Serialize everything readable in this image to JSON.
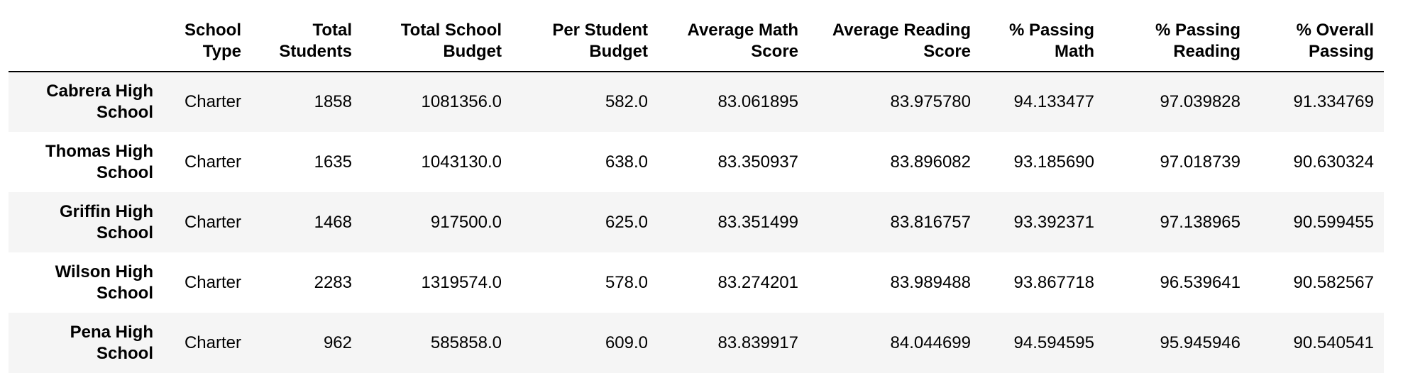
{
  "table": {
    "index_header": "",
    "columns": [
      {
        "line1": "School",
        "line2": "Type"
      },
      {
        "line1": "Total",
        "line2": "Students"
      },
      {
        "line1": "Total School",
        "line2": "Budget"
      },
      {
        "line1": "Per Student",
        "line2": "Budget"
      },
      {
        "line1": "Average Math",
        "line2": "Score"
      },
      {
        "line1": "Average Reading",
        "line2": "Score"
      },
      {
        "line1": "% Passing",
        "line2": "Math"
      },
      {
        "line1": "% Passing",
        "line2": "Reading"
      },
      {
        "line1": "% Overall",
        "line2": "Passing"
      }
    ],
    "rows": [
      {
        "school_line1": "Cabrera High",
        "school_line2": "School",
        "cells": [
          "Charter",
          "1858",
          "1081356.0",
          "582.0",
          "83.061895",
          "83.975780",
          "94.133477",
          "97.039828",
          "91.334769"
        ]
      },
      {
        "school_line1": "Thomas High",
        "school_line2": "School",
        "cells": [
          "Charter",
          "1635",
          "1043130.0",
          "638.0",
          "83.350937",
          "83.896082",
          "93.185690",
          "97.018739",
          "90.630324"
        ]
      },
      {
        "school_line1": "Griffin High",
        "school_line2": "School",
        "cells": [
          "Charter",
          "1468",
          "917500.0",
          "625.0",
          "83.351499",
          "83.816757",
          "93.392371",
          "97.138965",
          "90.599455"
        ]
      },
      {
        "school_line1": "Wilson High",
        "school_line2": "School",
        "cells": [
          "Charter",
          "2283",
          "1319574.0",
          "578.0",
          "83.274201",
          "83.989488",
          "93.867718",
          "96.539641",
          "90.582567"
        ]
      },
      {
        "school_line1": "Pena High",
        "school_line2": "School",
        "cells": [
          "Charter",
          "962",
          "585858.0",
          "609.0",
          "83.839917",
          "84.044699",
          "94.594595",
          "95.945946",
          "90.540541"
        ]
      }
    ]
  }
}
